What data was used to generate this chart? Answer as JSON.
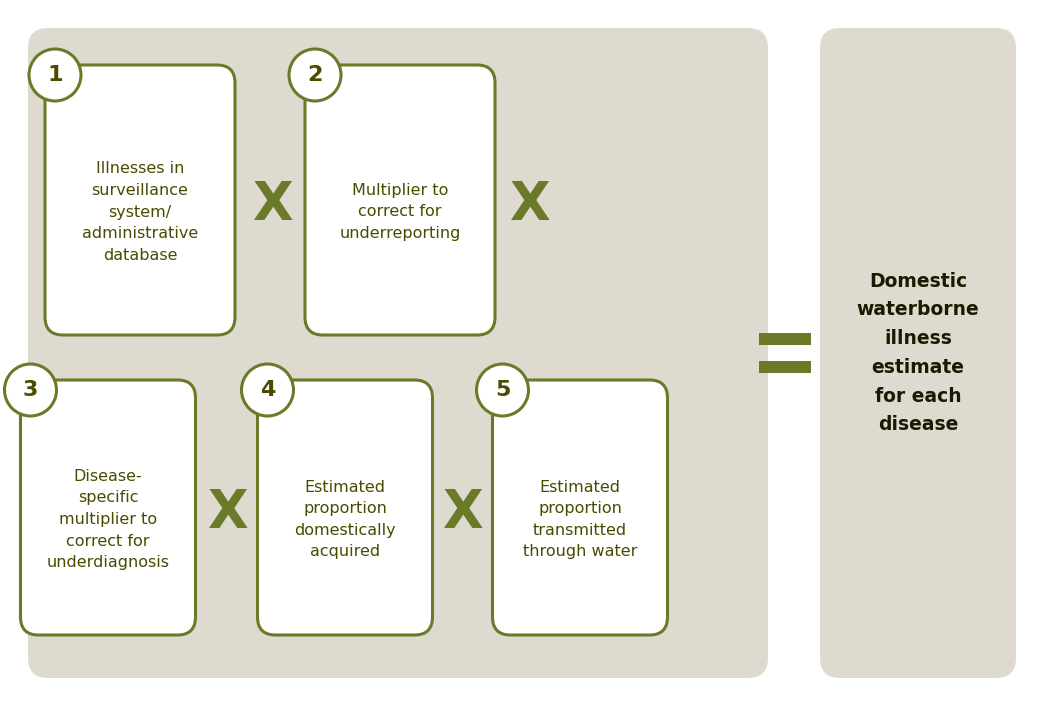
{
  "bg_color": "#dedad0",
  "box_color": "#ffffff",
  "border_color": "#6b7a28",
  "text_color": "#4a4a00",
  "operator_color": "#6b7a28",
  "result_text_color": "#1a1a00",
  "figure_bg": "#ffffff",
  "boxes": [
    {
      "num": "1",
      "text": "Illnesses in\nsurveillance\nsystem/\nadministrative\ndatabase",
      "row": 0,
      "col": 0
    },
    {
      "num": "2",
      "text": "Multiplier to\ncorrect for\nunderreporting",
      "row": 0,
      "col": 1
    },
    {
      "num": "3",
      "text": "Disease-\nspecific\nmultiplier to\ncorrect for\nunderdiagnosis",
      "row": 1,
      "col": 0
    },
    {
      "num": "4",
      "text": "Estimated\nproportion\ndomestically\nacquired",
      "row": 1,
      "col": 1
    },
    {
      "num": "5",
      "text": "Estimated\nproportion\ntransmitted\nthrough water",
      "row": 1,
      "col": 2
    }
  ],
  "result_text": "Domestic\nwaterborne\nillness\nestimate\nfor each\ndisease"
}
